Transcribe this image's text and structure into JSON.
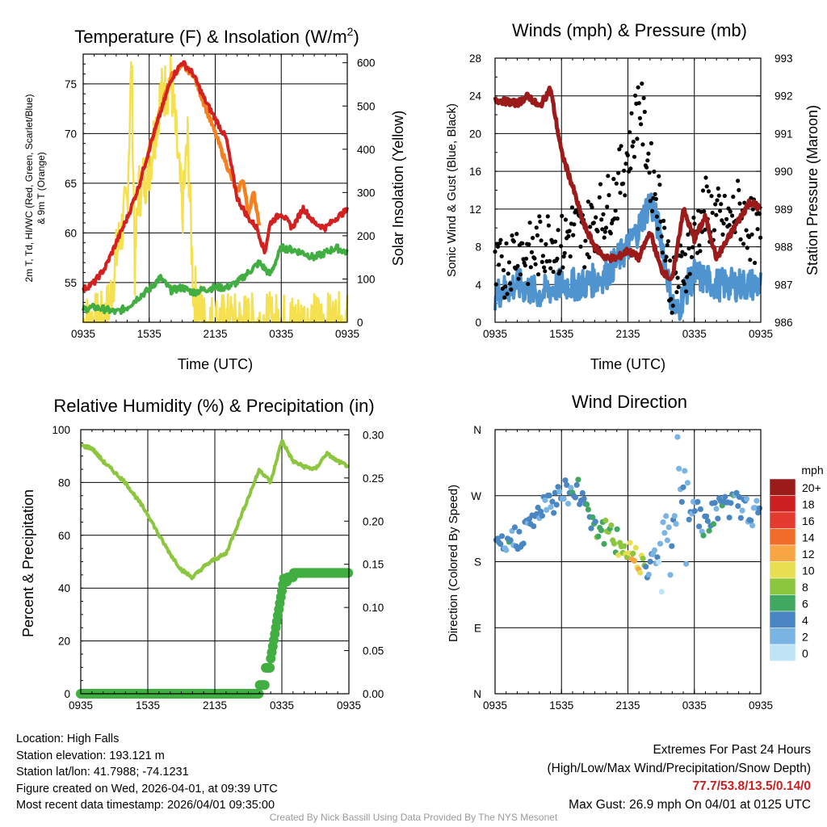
{
  "chart_data": [
    {
      "type": "line",
      "title": "Temperature (F) & Insolation (W/m²)",
      "title_main": "Temperature (F) & Insolation (W/m",
      "title_sup": "2",
      "title_close": ")",
      "xlabel": "Time (UTC)",
      "ylabel_left_line1": "2m T, Td, HI/WC (Red, Green, Scarlet/Blue)",
      "ylabel_left_line2": "& 9m T (Orange)",
      "ylabel_right": "Solar Insolation (Yellow)",
      "xticks": [
        "0935",
        "1535",
        "2135",
        "0335",
        "0935"
      ],
      "yticks_left": [
        55,
        60,
        65,
        70,
        75
      ],
      "yticks_right": [
        0,
        100,
        200,
        300,
        400,
        500,
        600
      ],
      "ylim": [
        51,
        78
      ],
      "ylim_right": [
        0,
        620
      ],
      "series": [
        {
          "name": "2m T",
          "color": "#d32020",
          "axis": "left",
          "x": [
            0,
            1,
            2,
            3,
            4,
            5,
            6,
            7,
            8,
            9,
            10,
            11,
            12,
            13,
            14,
            15,
            15.8,
            16.5,
            17,
            18,
            19,
            20,
            21,
            22,
            23,
            24
          ],
          "values": [
            54.3,
            55.0,
            56.5,
            59.0,
            61.5,
            64.5,
            68.5,
            72.0,
            75.5,
            77.2,
            76.0,
            73.5,
            71.5,
            69.5,
            63.5,
            61.5,
            60.5,
            58.0,
            61.0,
            62.0,
            60.5,
            62.5,
            61.0,
            60.5,
            61.5,
            62.3
          ]
        },
        {
          "name": "9m T",
          "color": "#f58020",
          "axis": "left",
          "x": [
            6,
            7,
            8,
            9,
            10,
            14,
            14.5,
            15,
            15.5,
            16
          ],
          "values": [
            68.5,
            72.2,
            75.8,
            76.8,
            76.0,
            64.0,
            65.5,
            62.0,
            64.0,
            61.0
          ]
        },
        {
          "name": "Td",
          "color": "#40ae40",
          "axis": "left",
          "x": [
            0,
            1,
            2,
            3,
            4,
            5,
            6,
            7,
            8,
            9,
            10,
            11,
            12,
            13,
            14,
            15,
            16,
            17,
            18,
            19,
            20,
            21,
            22,
            23,
            24
          ],
          "values": [
            52.3,
            52.5,
            52.3,
            52.0,
            52.5,
            53.5,
            54.3,
            55.5,
            54.2,
            54.5,
            54.0,
            54.3,
            54.5,
            54.5,
            55.0,
            56.0,
            57.0,
            55.8,
            58.5,
            58.3,
            58.0,
            57.5,
            58.0,
            58.5,
            58.0
          ]
        },
        {
          "name": "Solar Insolation",
          "color": "#f5e050",
          "axis": "right",
          "x": [
            0,
            1,
            2,
            2.5,
            3,
            4,
            4.4,
            4.7,
            5,
            6,
            7,
            8,
            8.6,
            9,
            9.5,
            10,
            11,
            12,
            24
          ],
          "values": [
            0,
            0,
            5,
            60,
            150,
            280,
            610,
            120,
            300,
            360,
            520,
            560,
            380,
            250,
            420,
            80,
            0,
            0,
            0
          ]
        }
      ]
    },
    {
      "type": "line",
      "title": "Winds (mph) & Pressure (mb)",
      "xlabel": "Time (UTC)",
      "ylabel_left": "Sonic Wind & Gust (Blue, Black)",
      "ylabel_right": "Station Pressure (Maroon)",
      "xticks": [
        "0935",
        "1535",
        "2135",
        "0335",
        "0935"
      ],
      "yticks_left": [
        0,
        4,
        8,
        12,
        16,
        20,
        24,
        28
      ],
      "yticks_right": [
        986,
        987,
        988,
        989,
        990,
        991,
        992,
        993
      ],
      "ylim": [
        0,
        28
      ],
      "ylim_right": [
        986,
        993
      ],
      "series": [
        {
          "name": "Sonic Wind",
          "color": "#4f94cf",
          "axis": "left",
          "x": [
            0,
            2,
            4,
            6,
            8,
            10,
            12,
            13,
            14,
            15,
            16,
            16.5,
            17,
            18,
            20,
            22,
            24
          ],
          "values": [
            3,
            4,
            3,
            4,
            4,
            5,
            8,
            10,
            13,
            9,
            2,
            1,
            3,
            5,
            4,
            4,
            4
          ]
        },
        {
          "name": "Gust",
          "color": "#000000",
          "axis": "left",
          "style": "points",
          "x": [
            0,
            1,
            2,
            3,
            4,
            5,
            6,
            7,
            8,
            9,
            10,
            11,
            12,
            12.5,
            13,
            14,
            15,
            16,
            17,
            18,
            19,
            20,
            21,
            22,
            23,
            24
          ],
          "values": [
            5,
            6,
            8,
            7,
            8,
            9,
            8,
            10,
            9,
            11,
            12,
            14,
            18,
            20,
            24,
            16,
            12,
            3,
            6,
            9,
            12,
            11,
            10,
            12,
            10,
            9
          ]
        },
        {
          "name": "Station Pressure",
          "color": "#9b1b1b",
          "axis": "right",
          "x": [
            0,
            2,
            3,
            4,
            5,
            6,
            7,
            8,
            9,
            10,
            11,
            12,
            13,
            14,
            15,
            16,
            17,
            18,
            19,
            20,
            21,
            22,
            23,
            24
          ],
          "values": [
            991.9,
            991.8,
            992.0,
            991.7,
            992.2,
            990.5,
            989.6,
            988.6,
            988.0,
            987.7,
            987.7,
            987.9,
            987.7,
            988.4,
            987.4,
            987.1,
            989.0,
            988.2,
            988.8,
            987.7,
            988.2,
            988.7,
            989.2,
            989.0
          ]
        }
      ]
    },
    {
      "type": "line",
      "title": "Relative Humidity (%) & Precipitation (in)",
      "xlabel": "",
      "ylabel": "Percent & Precipitation",
      "xticks": [
        "0935",
        "1535",
        "2135",
        "0335",
        "0935"
      ],
      "yticks_left": [
        0,
        20,
        40,
        60,
        80,
        100
      ],
      "yticks_right": [
        "0.00",
        "0.05",
        "0.10",
        "0.15",
        "0.20",
        "0.25",
        "0.30"
      ],
      "ylim": [
        0,
        100
      ],
      "ylim_right": [
        0,
        0.306
      ],
      "series": [
        {
          "name": "Relative Humidity",
          "color": "#8cc63f",
          "axis": "left",
          "x": [
            0,
            1,
            2,
            3,
            4,
            5,
            6,
            7,
            8,
            9,
            10,
            11,
            12,
            13,
            16,
            17,
            18,
            19,
            20,
            21,
            22,
            23,
            24
          ],
          "values": [
            94,
            93,
            88,
            84,
            80,
            74,
            68,
            60,
            53,
            47,
            44,
            48,
            51,
            53,
            85,
            80,
            96,
            88,
            86,
            85,
            91,
            88,
            86
          ]
        },
        {
          "name": "Precipitation",
          "color": "#40ae40",
          "axis": "right",
          "style": "points",
          "x": [
            0,
            13,
            16,
            16.5,
            17,
            17.5,
            18,
            18.5,
            19,
            24
          ],
          "values": [
            0.0,
            0.0,
            0.01,
            0.03,
            0.04,
            0.07,
            0.13,
            0.135,
            0.14,
            0.14
          ]
        }
      ]
    },
    {
      "type": "scatter",
      "title": "Wind Direction",
      "xlabel": "",
      "ylabel": "Direction (Colored By Speed)",
      "xticks": [
        "0935",
        "1535",
        "2135",
        "0335",
        "0935"
      ],
      "yticks": [
        "N",
        "E",
        "S",
        "W",
        "N"
      ],
      "ylim": [
        0,
        360
      ],
      "legend": {
        "title": "mph",
        "labels": [
          "20+",
          "18",
          "16",
          "14",
          "12",
          "10",
          "8",
          "6",
          "4",
          "2",
          "0"
        ],
        "colors": [
          "#9b1b1b",
          "#cc1f1f",
          "#e33b2f",
          "#f26c2a",
          "#f8a644",
          "#e8de52",
          "#8cc63f",
          "#40a860",
          "#4a86c2",
          "#7ab4e2",
          "#bfe4f6"
        ]
      },
      "x": [
        0,
        1,
        2,
        3,
        4,
        5,
        6,
        7,
        8,
        9,
        10,
        11,
        12,
        13,
        14,
        15,
        16,
        16.5,
        17,
        18,
        19,
        20,
        21,
        22,
        23,
        24
      ],
      "values": [
        190,
        200,
        215,
        225,
        250,
        255,
        280,
        275,
        270,
        230,
        220,
        205,
        195,
        185,
        175,
        200,
        170,
        300,
        240,
        260,
        230,
        250,
        260,
        255,
        250,
        240
      ],
      "speeds": [
        3,
        4,
        4,
        4,
        3,
        4,
        3,
        4,
        4,
        6,
        7,
        8,
        9,
        11,
        3,
        2,
        2,
        1,
        4,
        3,
        5,
        4,
        4,
        4,
        3,
        4
      ]
    }
  ],
  "info": {
    "location": "Location: High Falls",
    "elevation": "Station elevation: 193.121 m",
    "latlon": "Station lat/lon: 41.7988; -74.1231",
    "created": "Figure created on Wed, 2026-04-01, at 09:39 UTC",
    "recent": "Most recent data timestamp: 2026/04/01 09:35:00"
  },
  "extremes": {
    "title": "Extremes For Past 24 Hours",
    "subtitle": "(High/Low/Max Wind/Precipitation/Snow Depth)",
    "values": "77.7/53.8/13.5/0.14/0",
    "gust": "Max Gust: 26.9 mph On 04/01 at 0125 UTC"
  },
  "credit": "Created By Nick Bassill Using Data Provided By The NYS Mesonet"
}
